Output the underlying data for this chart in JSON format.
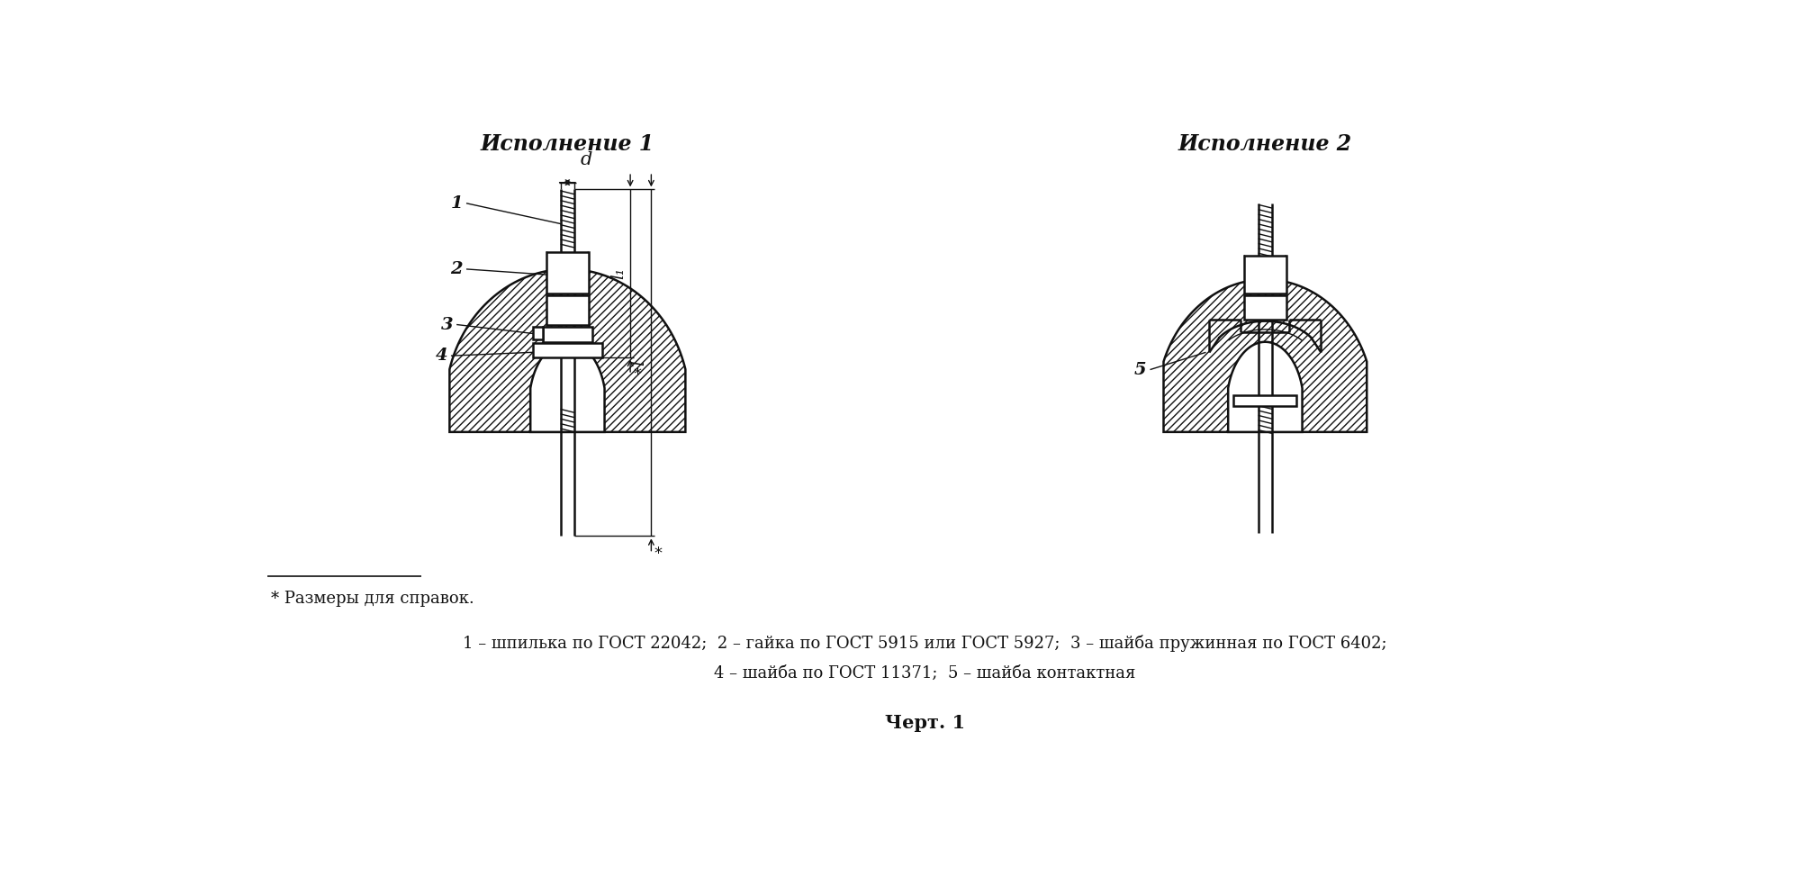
{
  "title_left": "Исполнение 1",
  "title_right": "Исполнение 2",
  "footnote_star": "* Размеры для справок.",
  "legend_line1": "1 – шпилька по ГОСТ 22042;  2 – гайка по ГОСТ 5915 или ГОСТ 5927;  3 – шайба пружинная по ГОСТ 6402;",
  "legend_line2": "4 – шайба по ГОСТ 11371;  5 – шайба контактная",
  "chart_title": "Черт. 1",
  "bg": "#ffffff",
  "lc": "#111111",
  "label_1": "1",
  "label_2": "2",
  "label_3": "3",
  "label_4": "4",
  "label_5": "5"
}
